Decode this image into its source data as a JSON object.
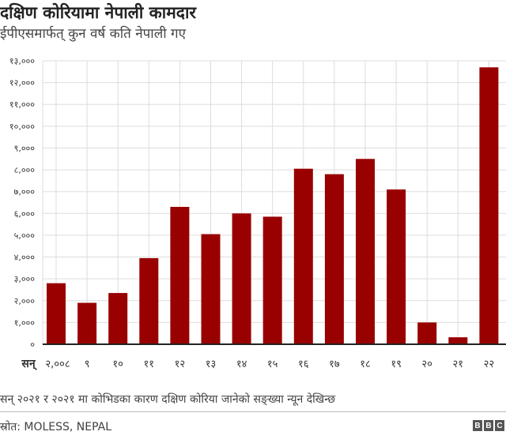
{
  "title": "दक्षिण कोरियामा नेपाली कामदार",
  "subtitle": "ईपीएसमार्फत् कुन वर्ष कति नेपाली गए",
  "note": "सन् २०२१ र २०२१ मा कोभिडका कारण दक्षिण कोरिया जानेको सङ्ख्या न्यून देखिन्छ",
  "source": "स्रोत: MOLESS, NEPAL",
  "logo": "BBC",
  "chart_data": {
    "type": "bar",
    "x_prefix": "सन्",
    "categories": [
      "२,००८",
      "९",
      "१०",
      "११",
      "१२",
      "१३",
      "१४",
      "१५",
      "१६",
      "१७",
      "१८",
      "१९",
      "२०",
      "२१",
      "२२"
    ],
    "values": [
      2800,
      1900,
      2350,
      3950,
      6300,
      5050,
      6000,
      5850,
      8050,
      7800,
      8500,
      7100,
      1000,
      320,
      12700
    ],
    "ylim": [
      0,
      13000
    ],
    "yticks": [
      0,
      1000,
      2000,
      3000,
      4000,
      5000,
      6000,
      7000,
      8000,
      9000,
      10000,
      11000,
      12000,
      13000
    ],
    "ytick_labels": [
      "०",
      "१,०००",
      "२,०००",
      "३,०००",
      "४,०००",
      "५,०००",
      "६,०००",
      "७,०००",
      "८,०००",
      "९,०००",
      "१०,०००",
      "११,०००",
      "१२,०००",
      "१३,०००"
    ],
    "grid": true,
    "bar_color": "#990000"
  }
}
